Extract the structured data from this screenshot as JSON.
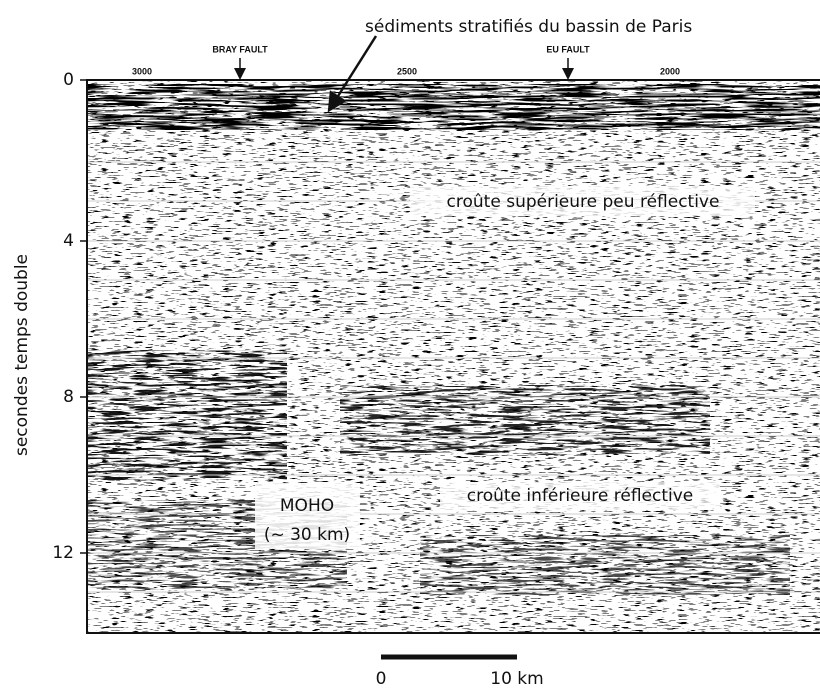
{
  "y_axis": {
    "label": "secondes temps double",
    "ticks": [
      "0",
      "4",
      "8",
      "12"
    ]
  },
  "top_labels": [
    "3000",
    "2500",
    "2000"
  ],
  "faults": [
    "BRAY FAULT",
    "EU FAULT"
  ],
  "annotations": {
    "sediments": "sédiments stratifiés du bassin de Paris",
    "upper_crust": "croûte supérieure peu réflective",
    "lower_crust": "croûte inférieure réflective",
    "moho": "MOHO",
    "moho_depth": "(~ 30 km)"
  },
  "scale_bar": {
    "start": "0",
    "end": "10 km"
  }
}
